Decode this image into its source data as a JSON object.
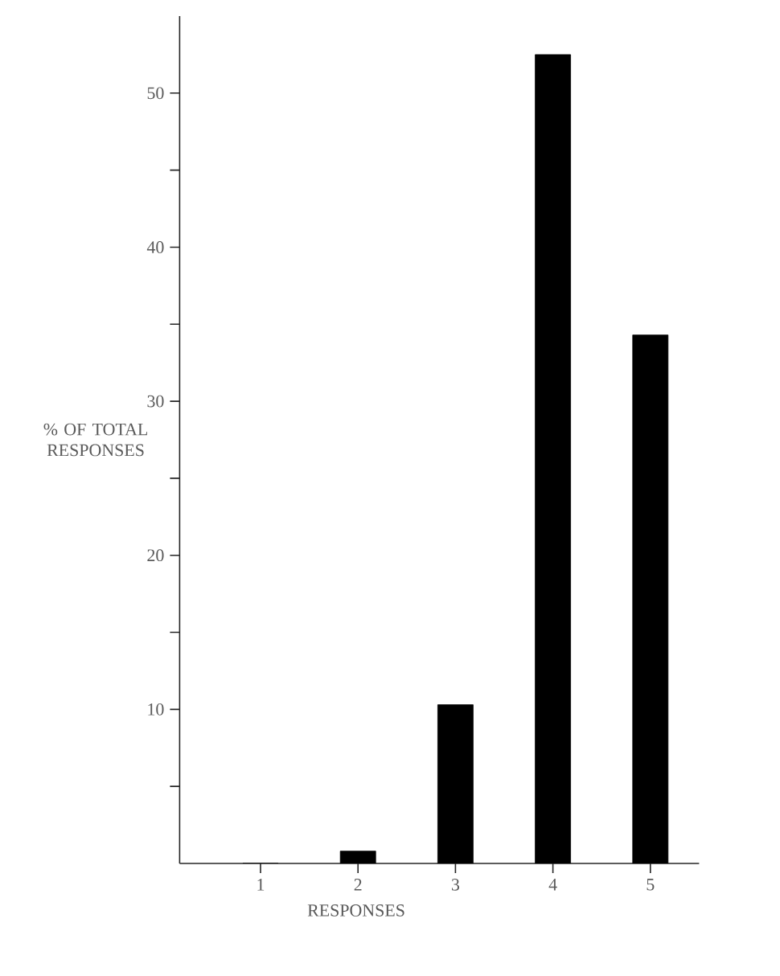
{
  "chart_data": {
    "type": "bar",
    "xlabel": "RESPONSES",
    "ylabel": "% OF TOTAL RESPONSES",
    "categories": [
      "1",
      "2",
      "3",
      "4",
      "5"
    ],
    "values": [
      0,
      0.8,
      10.3,
      52.5,
      34.3
    ],
    "color": "#000000",
    "ylim": [
      0,
      55
    ],
    "yticks": [
      {
        "value": 5,
        "label": null
      },
      10,
      {
        "value": 15,
        "label": null
      },
      20,
      {
        "value": 25,
        "label": null
      },
      30,
      {
        "value": 35,
        "label": null
      },
      40,
      {
        "value": 45,
        "label": null
      },
      50
    ],
    "grid": false
  }
}
